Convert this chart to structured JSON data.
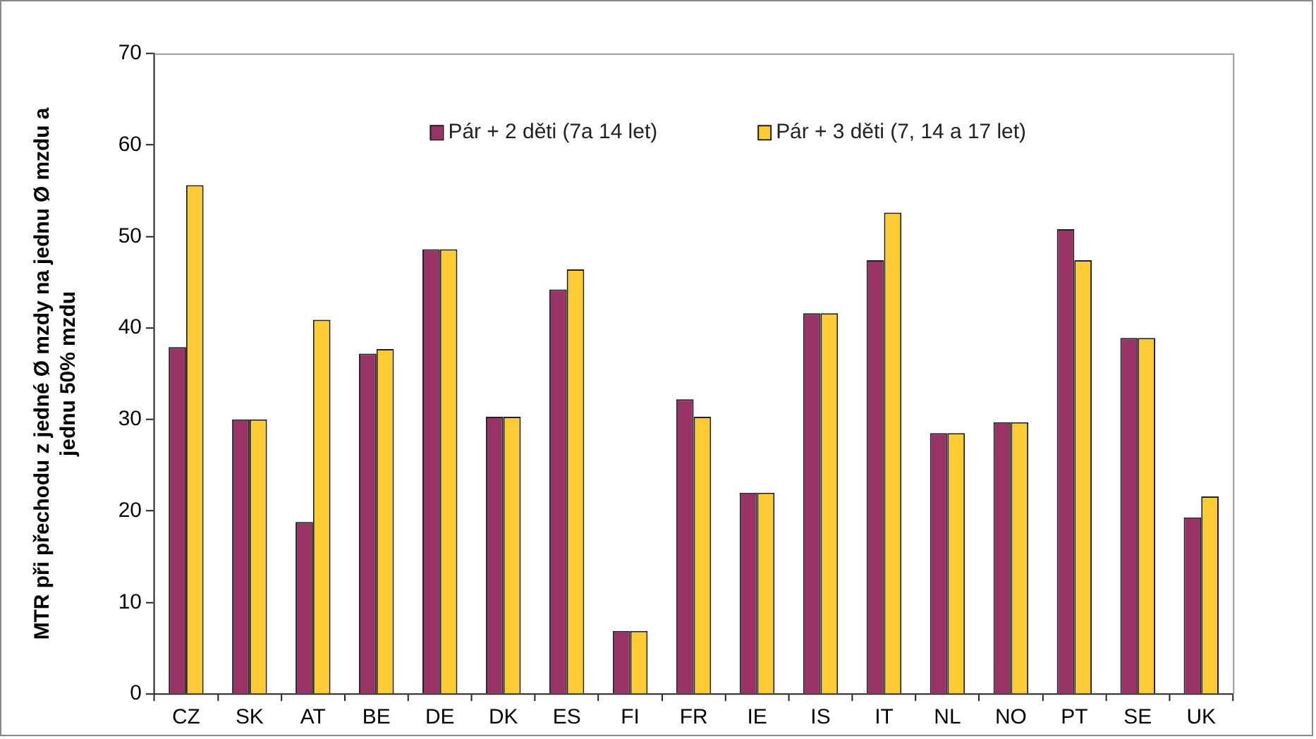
{
  "chart_data": {
    "type": "bar",
    "ylabel": "MTR při přechodu z jedné Ø mzdy na jednu Ø mzdu a jednu 50% mzdu",
    "categories": [
      "CZ",
      "SK",
      "AT",
      "BE",
      "DE",
      "DK",
      "ES",
      "FI",
      "FR",
      "IE",
      "IS",
      "IT",
      "NL",
      "NO",
      "PT",
      "SE",
      "UK"
    ],
    "series": [
      {
        "name": "Pár + 2 děti (7a 14 let)",
        "color": "#993366",
        "values": [
          37.9,
          30.0,
          18.8,
          37.2,
          48.6,
          30.3,
          44.2,
          6.9,
          32.2,
          22.0,
          41.6,
          47.4,
          28.5,
          29.7,
          50.8,
          38.9,
          19.3
        ]
      },
      {
        "name": "Pár + 3 děti (7, 14 a 17 let)",
        "color": "#ffcc33",
        "values": [
          55.6,
          30.0,
          40.9,
          37.7,
          48.6,
          30.3,
          46.4,
          6.9,
          30.3,
          22.0,
          41.6,
          52.6,
          28.5,
          29.7,
          47.4,
          38.9,
          21.6
        ]
      }
    ],
    "ylim": [
      0,
      70
    ],
    "yticks": [
      0,
      10,
      20,
      30,
      40,
      50,
      60,
      70
    ],
    "grid": false,
    "legend": "top"
  }
}
